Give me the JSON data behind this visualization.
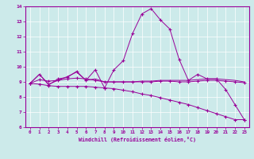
{
  "xlabel": "Windchill (Refroidissement éolien,°C)",
  "bg_color": "#cceaea",
  "line_color": "#990099",
  "xlim": [
    -0.5,
    23.5
  ],
  "ylim": [
    6,
    14
  ],
  "xticks": [
    0,
    1,
    2,
    3,
    4,
    5,
    6,
    7,
    8,
    9,
    10,
    11,
    12,
    13,
    14,
    15,
    16,
    17,
    18,
    19,
    20,
    21,
    22,
    23
  ],
  "yticks": [
    6,
    7,
    8,
    9,
    10,
    11,
    12,
    13,
    14
  ],
  "series": [
    {
      "x": [
        0,
        1,
        2,
        3,
        4,
        5,
        6,
        7,
        8,
        9,
        10,
        11,
        12,
        13,
        14,
        15,
        16,
        17,
        18,
        19,
        20,
        21,
        22,
        23
      ],
      "y": [
        8.9,
        9.5,
        8.8,
        9.2,
        9.3,
        9.7,
        9.1,
        9.8,
        8.6,
        9.8,
        10.4,
        12.2,
        13.5,
        13.85,
        13.1,
        12.5,
        10.5,
        9.1,
        9.5,
        9.2,
        9.2,
        8.5,
        7.5,
        6.5
      ],
      "marker": "+"
    },
    {
      "x": [
        0,
        1,
        2,
        3,
        4,
        5,
        6,
        7,
        8,
        9,
        10,
        11,
        12,
        13,
        14,
        15,
        16,
        17,
        18,
        19,
        20,
        21,
        22,
        23
      ],
      "y": [
        8.9,
        9.5,
        8.85,
        9.1,
        9.35,
        9.65,
        9.1,
        9.2,
        9.0,
        9.0,
        9.0,
        9.0,
        9.05,
        9.05,
        9.1,
        9.1,
        9.1,
        9.1,
        9.15,
        9.2,
        9.2,
        9.15,
        9.1,
        9.0
      ],
      "marker": null
    },
    {
      "x": [
        0,
        1,
        2,
        3,
        4,
        5,
        6,
        7,
        8,
        9,
        10,
        11,
        12,
        13,
        14,
        15,
        16,
        17,
        18,
        19,
        20,
        21,
        22,
        23
      ],
      "y": [
        8.9,
        8.85,
        8.75,
        8.7,
        8.7,
        8.7,
        8.7,
        8.65,
        8.6,
        8.55,
        8.45,
        8.35,
        8.2,
        8.1,
        7.95,
        7.8,
        7.65,
        7.5,
        7.3,
        7.1,
        6.9,
        6.7,
        6.5,
        6.5
      ],
      "marker": "+"
    },
    {
      "x": [
        0,
        1,
        2,
        3,
        4,
        5,
        6,
        7,
        8,
        9,
        10,
        11,
        12,
        13,
        14,
        15,
        16,
        17,
        18,
        19,
        20,
        21,
        22,
        23
      ],
      "y": [
        8.9,
        9.15,
        9.05,
        9.1,
        9.2,
        9.25,
        9.2,
        9.1,
        9.0,
        9.0,
        9.0,
        9.0,
        9.0,
        9.0,
        9.05,
        9.05,
        9.0,
        9.0,
        9.05,
        9.1,
        9.1,
        9.05,
        9.0,
        8.95
      ],
      "marker": "+"
    }
  ]
}
